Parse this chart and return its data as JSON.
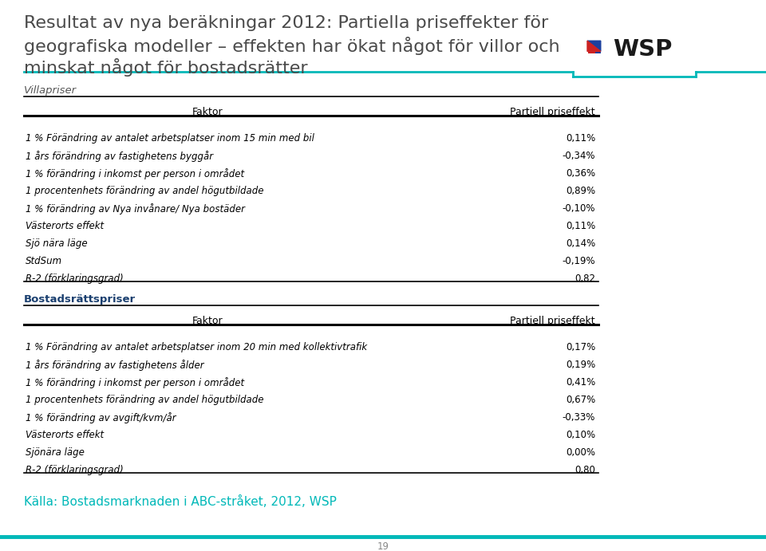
{
  "title_line1": "Resultat av nya beräkningar 2012: Partiella priseffekter för",
  "title_line2": "geografiska modeller – effekten har ökat något för villor och",
  "title_line3": "minskat något för bostadsrätter",
  "title_color": "#4a4a4a",
  "teal_color": "#00b8b8",
  "section1_header": "Villapriser",
  "section1_header_color": "#555555",
  "col1_header": "Faktor",
  "col2_header": "Partiell priseffekt",
  "villa_rows": [
    [
      "1 % Förändring av antalet arbetsplatser inom 15 min med bil",
      "0,11%"
    ],
    [
      "1 års förändring av fastighetens byggår",
      "-0,34%"
    ],
    [
      "1 % förändring i inkomst per person i området",
      "0,36%"
    ],
    [
      "1 procentenhets förändring av andel högutbildade",
      "0,89%"
    ],
    [
      "1 % förändring av Nya invånare/ Nya bostäder",
      "-0,10%"
    ],
    [
      "Västerorts effekt",
      "0,11%"
    ],
    [
      "Sjö nära läge",
      "0,14%"
    ],
    [
      "StdSum",
      "-0,19%"
    ],
    [
      "R-2 (förklaringsgrad)",
      "0,82"
    ]
  ],
  "section2_header": "Bostadsrättspriser",
  "section2_header_color": "#1a3f6f",
  "bostads_rows": [
    [
      "1 % Förändring av antalet arbetsplatser inom 20 min med kollektivtrafik",
      "0,17%"
    ],
    [
      "1 års förändring av fastighetens ålder",
      "0,19%"
    ],
    [
      "1 % förändring i inkomst per person i området",
      "0,41%"
    ],
    [
      "1 procentenhets förändring av andel högutbildade",
      "0,67%"
    ],
    [
      "1 % förändring av avgift/kvm/år",
      "-0,33%"
    ],
    [
      "Västerorts effekt",
      "0,10%"
    ],
    [
      "Sjönära läge",
      "0,00%"
    ],
    [
      "R-2 (förklaringsgrad)",
      "0,80"
    ]
  ],
  "footer": "Källa: Bostadsmarknaden i ABC-stråket, 2012, WSP",
  "footer_color": "#00b8b8",
  "page_number": "19",
  "bg_color": "#ffffff"
}
